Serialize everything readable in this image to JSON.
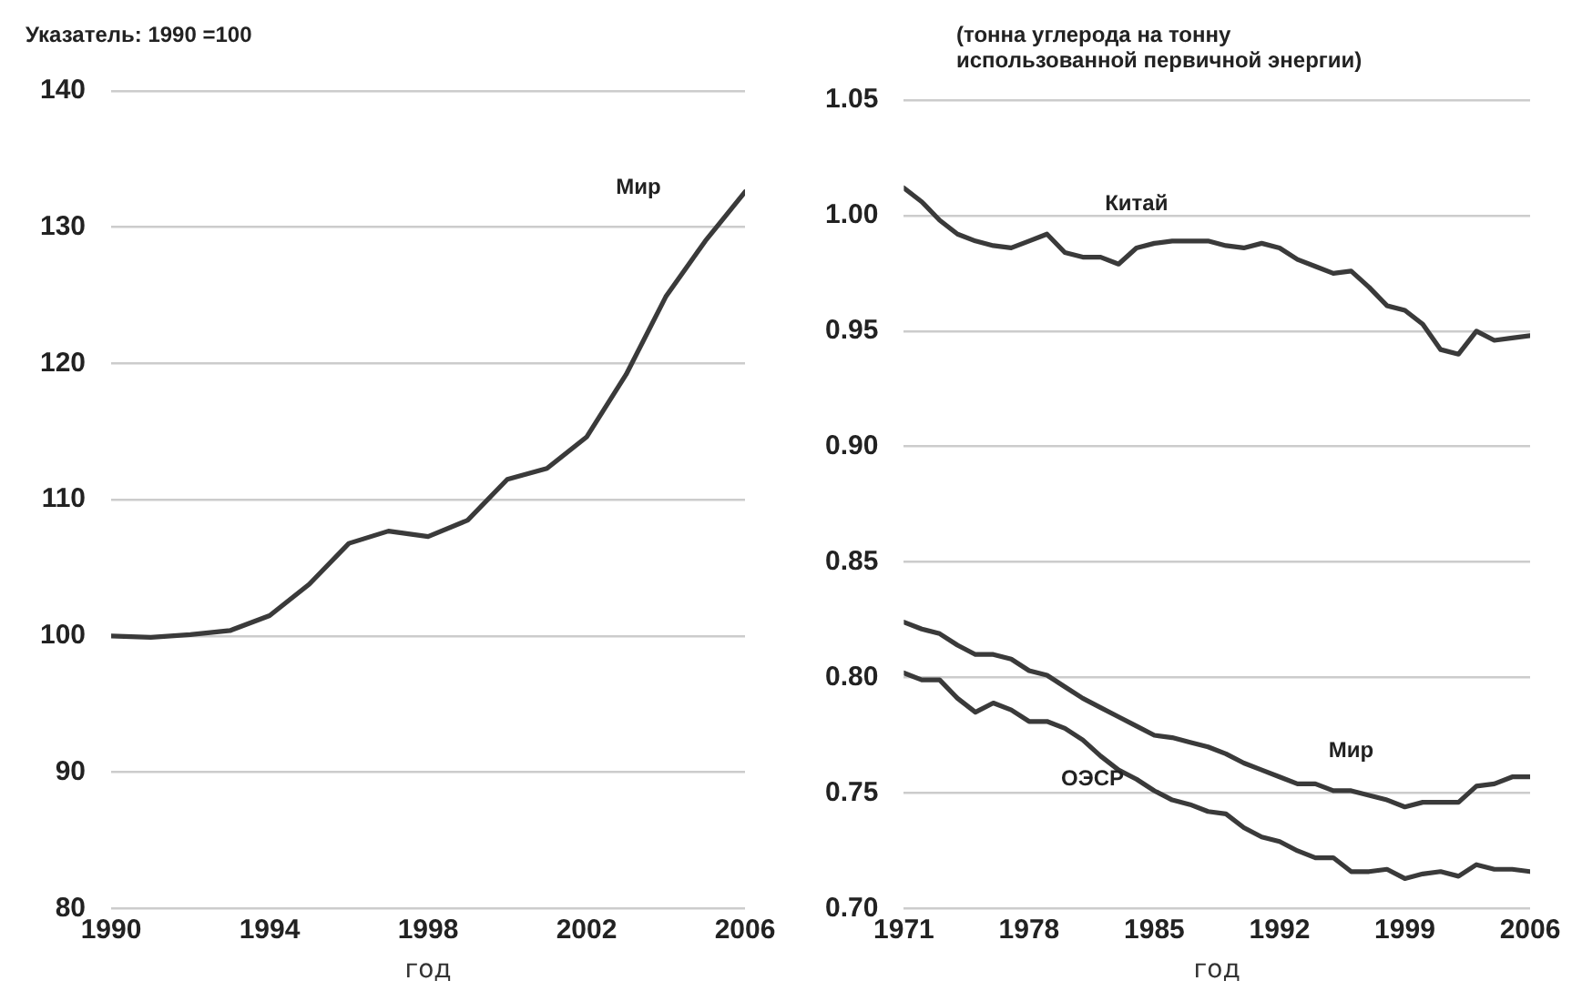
{
  "chart_data": [
    {
      "type": "line",
      "ylabel": "Указатель: 1990 =100",
      "xlabel": "год",
      "xlim": [
        1990,
        2006
      ],
      "xticks": [
        1990,
        1994,
        1998,
        2002,
        2006
      ],
      "ylim": [
        80,
        140
      ],
      "yticks": [
        80,
        90,
        100,
        110,
        120,
        130,
        140
      ],
      "grid": "y",
      "legend": false,
      "marker": "none",
      "x": [
        1990,
        1991,
        1992,
        1993,
        1994,
        1995,
        1996,
        1997,
        1998,
        1999,
        2000,
        2001,
        2002,
        2003,
        2004,
        2005,
        2006
      ],
      "series": [
        {
          "name": "Мир",
          "color": "#3a3a3a",
          "values": [
            100,
            99.9,
            100.1,
            100.4,
            101.5,
            103.8,
            106.8,
            107.7,
            107.3,
            108.5,
            111.5,
            112.3,
            114.6,
            119.2,
            124.9,
            129,
            132.6
          ]
        }
      ]
    },
    {
      "type": "line",
      "ylabel": "(тонна углерода на тонну использованной первичной энергии)",
      "xlabel": "год",
      "xlim": [
        1971,
        2006
      ],
      "xticks": [
        1971,
        1978,
        1985,
        1992,
        1999,
        2006
      ],
      "ylim": [
        0.7,
        1.05
      ],
      "yticks": [
        {
          "value": 0.7,
          "label": "0.70"
        },
        0.75,
        {
          "value": 0.8,
          "label": "0.80"
        },
        0.85,
        {
          "value": 0.9,
          "label": "0.90"
        },
        0.95,
        {
          "value": 1,
          "label": "1.00"
        },
        1.05
      ],
      "grid": "y",
      "legend": false,
      "marker": "none",
      "x": [
        1971,
        1972,
        1973,
        1974,
        1975,
        1976,
        1977,
        1978,
        1979,
        1980,
        1981,
        1982,
        1983,
        1984,
        1985,
        1986,
        1987,
        1988,
        1989,
        1990,
        1991,
        1992,
        1993,
        1994,
        1995,
        1996,
        1997,
        1998,
        1999,
        2000,
        2001,
        2002,
        2003,
        2004,
        2005,
        2006
      ],
      "series": [
        {
          "name": "Китай",
          "color": "#3a3a3a",
          "values": [
            1.012,
            1.006,
            0.998,
            0.992,
            0.989,
            0.987,
            0.986,
            0.989,
            0.992,
            0.984,
            0.982,
            0.982,
            0.979,
            0.986,
            0.988,
            0.989,
            0.989,
            0.989,
            0.987,
            0.986,
            0.988,
            0.986,
            0.981,
            0.978,
            0.975,
            0.976,
            0.969,
            0.961,
            0.959,
            0.953,
            0.942,
            0.94,
            0.95,
            0.946,
            0.947,
            0.948
          ]
        },
        {
          "name": "Мир",
          "color": "#3a3a3a",
          "values": [
            0.824,
            0.821,
            0.819,
            0.814,
            0.81,
            0.81,
            0.808,
            0.803,
            0.801,
            0.796,
            0.791,
            0.787,
            0.783,
            0.779,
            0.775,
            0.774,
            0.772,
            0.77,
            0.767,
            0.763,
            0.76,
            0.757,
            0.754,
            0.754,
            0.751,
            0.751,
            0.749,
            0.747,
            0.744,
            0.746,
            0.746,
            0.746,
            0.753,
            0.754,
            0.757,
            0.757
          ]
        },
        {
          "name": "ОЭСР",
          "color": "#3a3a3a",
          "values": [
            0.802,
            0.799,
            0.799,
            0.791,
            0.785,
            0.789,
            0.786,
            0.781,
            0.781,
            0.778,
            0.773,
            0.766,
            0.76,
            0.756,
            0.751,
            0.747,
            0.745,
            0.742,
            0.741,
            0.735,
            0.731,
            0.729,
            0.725,
            0.722,
            0.722,
            0.716,
            0.716,
            0.717,
            0.713,
            0.715,
            0.716,
            0.714,
            0.719,
            0.717,
            0.717,
            0.716
          ]
        }
      ]
    }
  ]
}
